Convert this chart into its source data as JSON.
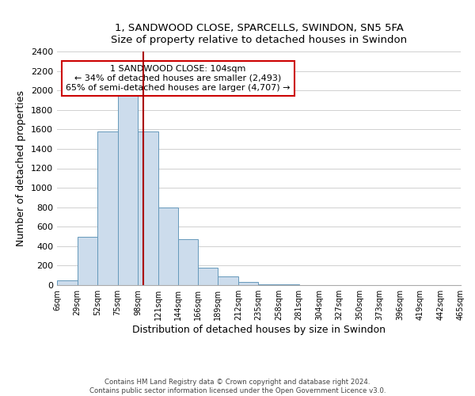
{
  "title_line1": "1, SANDWOOD CLOSE, SPARCELLS, SWINDON, SN5 5FA",
  "title_line2": "Size of property relative to detached houses in Swindon",
  "xlabel": "Distribution of detached houses by size in Swindon",
  "ylabel": "Number of detached properties",
  "bar_edges": [
    6,
    29,
    52,
    75,
    98,
    121,
    144,
    166,
    189,
    212,
    235,
    258,
    281,
    304,
    327,
    350,
    373,
    396,
    419,
    442,
    465
  ],
  "bar_heights": [
    50,
    500,
    1580,
    1950,
    1580,
    800,
    470,
    175,
    90,
    35,
    10,
    5,
    2,
    1,
    0,
    0,
    0,
    0,
    0,
    0
  ],
  "bar_color": "#ccdcec",
  "bar_edgecolor": "#6699bb",
  "ylim": [
    0,
    2400
  ],
  "yticks": [
    0,
    200,
    400,
    600,
    800,
    1000,
    1200,
    1400,
    1600,
    1800,
    2000,
    2200,
    2400
  ],
  "xtick_labels": [
    "6sqm",
    "29sqm",
    "52sqm",
    "75sqm",
    "98sqm",
    "121sqm",
    "144sqm",
    "166sqm",
    "189sqm",
    "212sqm",
    "235sqm",
    "258sqm",
    "281sqm",
    "304sqm",
    "327sqm",
    "350sqm",
    "373sqm",
    "396sqm",
    "419sqm",
    "442sqm",
    "465sqm"
  ],
  "property_size": 104,
  "vline_color": "#aa0000",
  "annotation_title": "1 SANDWOOD CLOSE: 104sqm",
  "annotation_line1": "← 34% of detached houses are smaller (2,493)",
  "annotation_line2": "65% of semi-detached houses are larger (4,707) →",
  "annotation_box_color": "#ffffff",
  "annotation_box_edgecolor": "#cc0000",
  "grid_color": "#d0d0d0",
  "footer_line1": "Contains HM Land Registry data © Crown copyright and database right 2024.",
  "footer_line2": "Contains public sector information licensed under the Open Government Licence v3.0.",
  "bg_color": "#ffffff",
  "title_fontsize": 10,
  "subtitle_fontsize": 9,
  "ylabel_text": "Number of detached properties"
}
